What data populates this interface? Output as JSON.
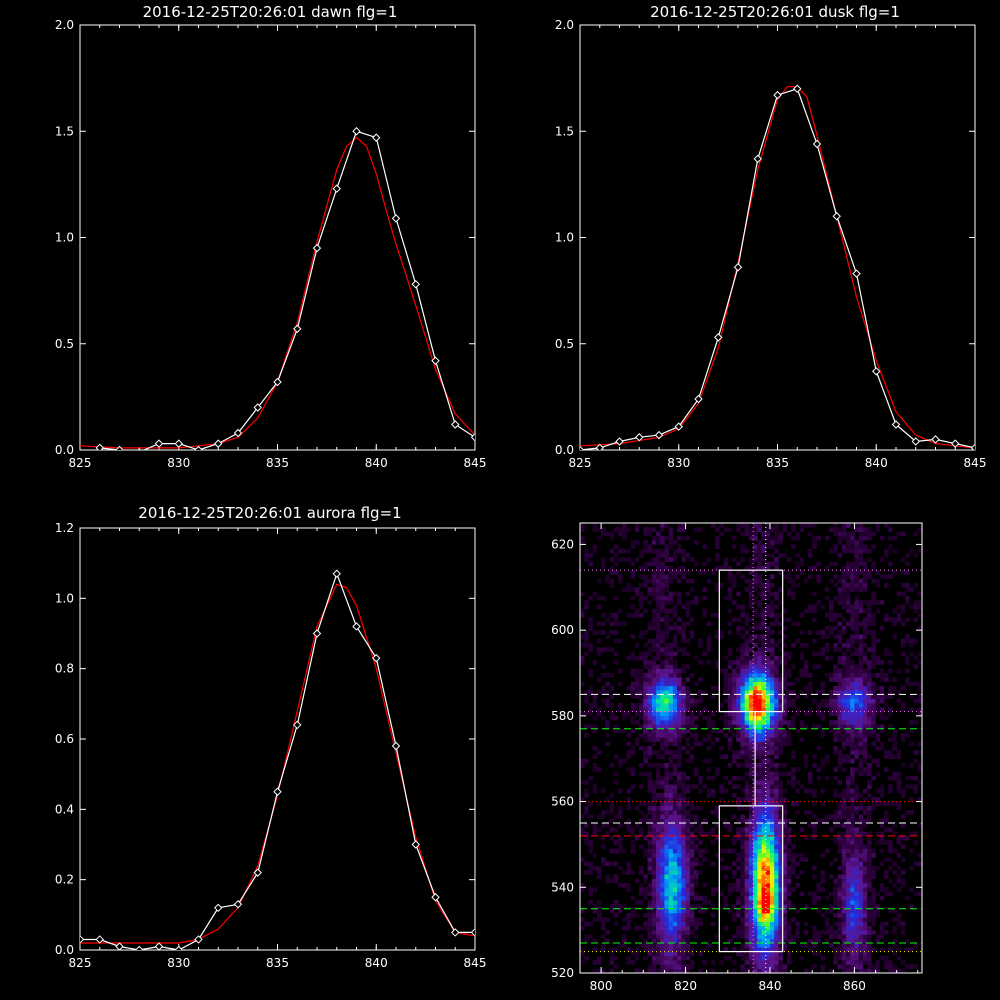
{
  "colors": {
    "background": "#000000",
    "axes": "#ffffff",
    "observed": "#ffffff",
    "fit": "#ff0000"
  },
  "chart_data": [
    {
      "id": "dawn",
      "type": "line",
      "title": "2016-12-25T20:26:01 dawn flg=1",
      "xlabel": "",
      "ylabel": "",
      "xlim": [
        825,
        845
      ],
      "ylim": [
        0,
        2.0
      ],
      "xticks": [
        "825",
        "830",
        "835",
        "840",
        "845"
      ],
      "yticks": [
        "0.0",
        "0.5",
        "1.0",
        "1.5",
        "2.0"
      ],
      "series": [
        {
          "style": "white-diamond-line",
          "x": [
            826,
            827,
            828,
            829,
            830,
            831,
            832,
            833,
            834,
            835,
            836,
            837,
            838,
            839,
            840,
            841,
            842,
            843,
            844,
            845
          ],
          "y": [
            0.01,
            0.0,
            -0.01,
            0.03,
            0.03,
            0.0,
            0.03,
            0.08,
            0.2,
            0.32,
            0.57,
            0.95,
            1.23,
            1.5,
            1.47,
            1.09,
            0.78,
            0.42,
            0.12,
            0.06
          ]
        },
        {
          "style": "red-fit",
          "x": [
            825,
            827,
            829,
            830,
            831,
            832,
            833,
            834,
            835,
            836,
            837,
            838,
            838.5,
            839,
            839.5,
            840,
            840.5,
            841,
            842,
            843,
            844,
            845
          ],
          "y": [
            0.02,
            0.01,
            0.01,
            0.01,
            0.02,
            0.03,
            0.06,
            0.15,
            0.32,
            0.6,
            0.98,
            1.32,
            1.43,
            1.47,
            1.43,
            1.3,
            1.13,
            0.97,
            0.68,
            0.38,
            0.17,
            0.07
          ]
        }
      ]
    },
    {
      "id": "dusk",
      "type": "line",
      "title": "2016-12-25T20:26:01 dusk flg=1",
      "xlabel": "",
      "ylabel": "",
      "xlim": [
        825,
        845
      ],
      "ylim": [
        0,
        2.0
      ],
      "xticks": [
        "825",
        "830",
        "835",
        "840",
        "845"
      ],
      "yticks": [
        "0.0",
        "0.5",
        "1.0",
        "1.5",
        "2.0"
      ],
      "series": [
        {
          "style": "white-diamond-line",
          "x": [
            825,
            826,
            827,
            828,
            829,
            830,
            831,
            832,
            833,
            834,
            835,
            836,
            837,
            838,
            839,
            840,
            841,
            842,
            843,
            844,
            845
          ],
          "y": [
            0.0,
            0.01,
            0.04,
            0.06,
            0.07,
            0.11,
            0.24,
            0.53,
            0.86,
            1.37,
            1.67,
            1.7,
            1.44,
            1.1,
            0.83,
            0.37,
            0.12,
            0.04,
            0.05,
            0.03,
            0.01
          ]
        },
        {
          "style": "red-fit",
          "x": [
            825,
            827,
            829,
            830,
            831,
            832,
            833,
            834,
            835,
            835.5,
            836,
            836.5,
            837,
            838,
            839,
            840,
            841,
            842,
            843,
            844,
            845
          ],
          "y": [
            0.02,
            0.03,
            0.06,
            0.1,
            0.22,
            0.48,
            0.88,
            1.32,
            1.65,
            1.71,
            1.71,
            1.66,
            1.48,
            1.1,
            0.72,
            0.42,
            0.18,
            0.07,
            0.03,
            0.02,
            0.01
          ]
        }
      ]
    },
    {
      "id": "aurora",
      "type": "line",
      "title": "2016-12-25T20:26:01 aurora flg=1",
      "xlabel": "",
      "ylabel": "",
      "xlim": [
        825,
        845
      ],
      "ylim": [
        0,
        1.2
      ],
      "xticks": [
        "825",
        "830",
        "835",
        "840",
        "845"
      ],
      "yticks": [
        "0.0",
        "0.2",
        "0.4",
        "0.6",
        "0.8",
        "1.0",
        "1.2"
      ],
      "series": [
        {
          "style": "white-diamond-line",
          "x": [
            825,
            826,
            827,
            828,
            829,
            830,
            831,
            832,
            833,
            834,
            835,
            836,
            837,
            838,
            839,
            840,
            841,
            842,
            843,
            844,
            845
          ],
          "y": [
            0.03,
            0.03,
            0.01,
            0.0,
            0.01,
            0.0,
            0.03,
            0.12,
            0.13,
            0.22,
            0.45,
            0.64,
            0.9,
            1.07,
            0.92,
            0.83,
            0.58,
            0.3,
            0.15,
            0.05,
            0.05
          ]
        },
        {
          "style": "red-fit",
          "x": [
            825,
            828,
            830,
            831,
            832,
            833,
            834,
            835,
            836,
            837,
            838,
            838.5,
            839,
            840,
            841,
            842,
            843,
            844,
            845
          ],
          "y": [
            0.02,
            0.02,
            0.02,
            0.03,
            0.06,
            0.12,
            0.24,
            0.44,
            0.68,
            0.92,
            1.04,
            1.03,
            0.98,
            0.8,
            0.56,
            0.32,
            0.14,
            0.05,
            0.04
          ]
        }
      ]
    },
    {
      "id": "image",
      "type": "heatmap",
      "title": "",
      "xlim": [
        795,
        876
      ],
      "ylim": [
        520,
        625
      ],
      "xticks": [
        "800",
        "820",
        "840",
        "860"
      ],
      "yticks": [
        "520",
        "540",
        "560",
        "580",
        "600",
        "620"
      ],
      "blobs": [
        {
          "x": 815,
          "y": 583,
          "sx": 3,
          "sy": 4,
          "amp": 0.55
        },
        {
          "x": 837,
          "y": 583,
          "sx": 3,
          "sy": 5,
          "amp": 0.95
        },
        {
          "x": 860,
          "y": 583,
          "sx": 3,
          "sy": 4,
          "amp": 0.35
        },
        {
          "x": 817,
          "y": 541,
          "sx": 2.5,
          "sy": 10,
          "amp": 0.5
        },
        {
          "x": 839,
          "y": 541,
          "sx": 2.5,
          "sy": 11,
          "amp": 0.85
        },
        {
          "x": 839,
          "y": 536,
          "sx": 1.5,
          "sy": 2,
          "amp": 0.25
        },
        {
          "x": 860,
          "y": 536,
          "sx": 2,
          "sy": 8,
          "amp": 0.3
        }
      ],
      "boxes": [
        {
          "x0": 828,
          "x1": 843,
          "y0": 581,
          "y1": 614
        },
        {
          "x0": 828,
          "x1": 843,
          "y0": 525,
          "y1": 559
        }
      ],
      "vlines": [
        {
          "x": 836,
          "color": "#ff6fff"
        },
        {
          "x": 839,
          "color": "#ffffff"
        }
      ],
      "hlines": [
        {
          "y": 614,
          "color": "#ff6fff",
          "dash": "1,3"
        },
        {
          "y": 585,
          "color": "#ffffff",
          "dash": "7,4"
        },
        {
          "y": 581,
          "color": "#ff6fff",
          "dash": "1,3"
        },
        {
          "y": 577,
          "color": "#00ff00",
          "dash": "7,4"
        },
        {
          "y": 560,
          "color": "#ff0000",
          "dash": "1,3"
        },
        {
          "y": 555,
          "color": "#ffffff",
          "dash": "7,4"
        },
        {
          "y": 552,
          "color": "#ff0000",
          "dash": "7,4"
        },
        {
          "y": 535,
          "color": "#00ff00",
          "dash": "7,4"
        },
        {
          "y": 527,
          "color": "#00ff00",
          "dash": "7,4"
        },
        {
          "y": 525,
          "color": "#ffff00",
          "dash": "1,3"
        }
      ]
    }
  ]
}
